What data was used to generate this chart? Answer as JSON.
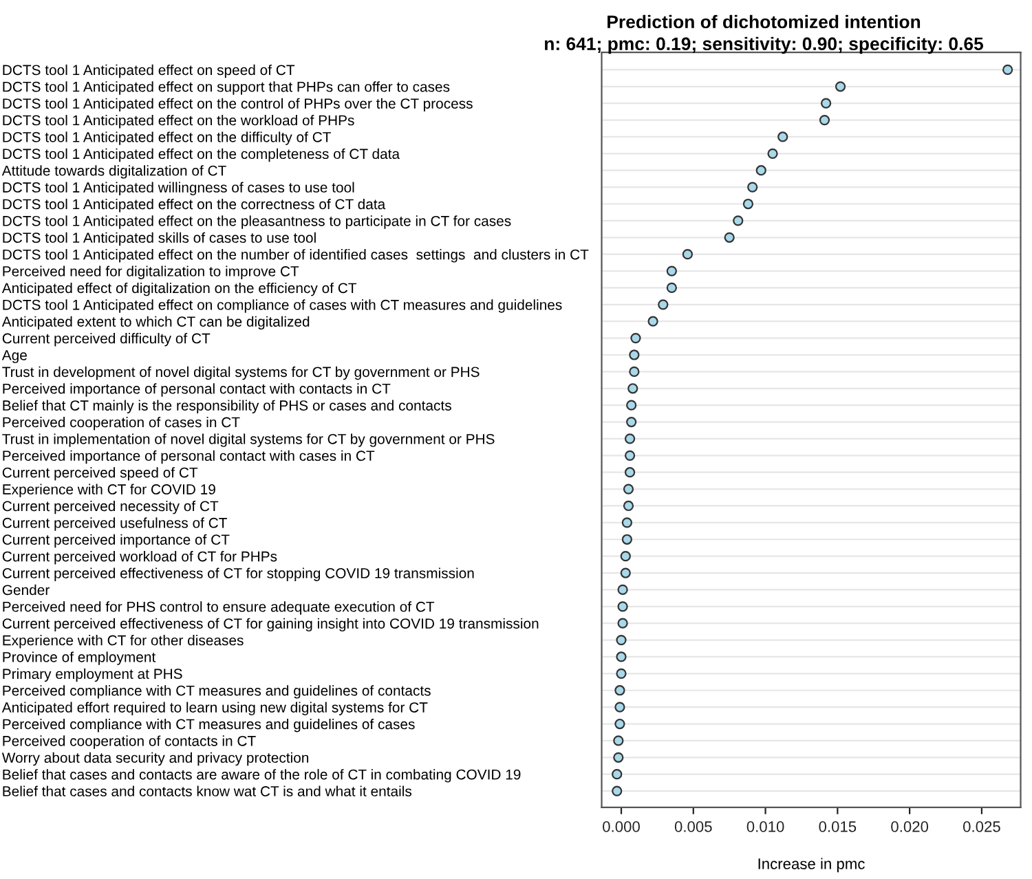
{
  "chart_data": {
    "type": "scatter",
    "orientation": "horizontal",
    "title": "Prediction of dichotomized intention",
    "subtitle": "n: 641; pmc: 0.19; sensitivity: 0.90; specificity: 0.65",
    "xlabel": "Increase in pmc",
    "categories": [
      "DCTS tool 1 Anticipated effect on speed of CT",
      "DCTS tool 1 Anticipated effect on support that PHPs can offer to cases",
      "DCTS tool 1 Anticipated effect on the control of PHPs over the CT process",
      "DCTS tool 1 Anticipated effect on the workload of PHPs",
      "DCTS tool 1 Anticipated effect on the difficulty of CT",
      "DCTS tool 1 Anticipated effect on the completeness of CT data",
      "Attitude towards digitalization of CT",
      "DCTS tool 1 Anticipated willingness of cases to use tool",
      "DCTS tool 1 Anticipated effect on the correctness of CT data",
      "DCTS tool 1 Anticipated effect on the pleasantness to participate in CT for cases",
      "DCTS tool 1 Anticipated skills of cases to use tool",
      "DCTS tool 1 Anticipated effect on the number of identified cases  settings  and clusters in CT",
      "Perceived need for digitalization to improve CT",
      "Anticipated effect of digitalization on the efficiency of CT",
      "DCTS tool 1 Anticipated effect on compliance of cases with CT measures and guidelines",
      "Anticipated extent to which CT can be digitalized",
      "Current perceived difficulty of CT",
      "Age",
      "Trust in development of novel digital systems for CT by government or PHS",
      "Perceived importance of personal contact with contacts in CT",
      "Belief that CT mainly is the responsibility of PHS or cases and contacts",
      "Perceived cooperation of cases in CT",
      "Trust in implementation of novel digital systems for CT by government or PHS",
      "Perceived importance of personal contact with cases in CT",
      "Current perceived speed of CT",
      "Experience with CT for COVID 19",
      "Current perceived necessity of CT",
      "Current perceived usefulness of CT",
      "Current perceived importance of CT",
      "Current perceived workload of CT for PHPs",
      "Current perceived effectiveness of CT for stopping COVID 19 transmission",
      "Gender",
      "Perceived need for PHS control to ensure adequate execution of CT",
      "Current perceived effectiveness of CT for gaining insight into COVID 19 transmission",
      "Experience with CT for other diseases",
      "Province of employment",
      "Primary employment at PHS",
      "Perceived compliance with CT measures and guidelines of contacts",
      "Anticipated effort required to learn using new digital systems for CT",
      "Perceived compliance with CT measures and guidelines of cases",
      "Perceived cooperation of contacts in CT",
      "Worry about data security and privacy protection",
      "Belief that cases and contacts are aware of the role of CT in combating COVID 19",
      "Belief that cases and contacts know wat CT is and what it entails"
    ],
    "values": [
      0.0268,
      0.0152,
      0.0142,
      0.0141,
      0.0112,
      0.0105,
      0.0097,
      0.0091,
      0.0088,
      0.0081,
      0.0075,
      0.0046,
      0.0035,
      0.0035,
      0.0029,
      0.0022,
      0.001,
      0.0009,
      0.0009,
      0.0008,
      0.0007,
      0.0007,
      0.0006,
      0.0006,
      0.0006,
      0.0005,
      0.0005,
      0.0004,
      0.0004,
      0.0003,
      0.0003,
      0.0001,
      0.0001,
      0.0001,
      0.0,
      0.0,
      0.0,
      -0.0001,
      -0.0001,
      -0.0001,
      -0.0002,
      -0.0002,
      -0.0003,
      -0.0003
    ],
    "color": "#a8d8ea",
    "xlim": [
      -0.00136,
      0.0277
    ],
    "xticks": [
      {
        "value": 0,
        "label": "0.000"
      },
      {
        "value": 0.005,
        "label": "0.005"
      },
      {
        "value": 0.01,
        "label": "0.010"
      },
      {
        "value": 0.015,
        "label": "0.015"
      },
      {
        "value": 0.02,
        "label": "0.020"
      },
      {
        "value": 0.025,
        "label": "0.025"
      }
    ],
    "grid": "y",
    "marker": "circle"
  }
}
